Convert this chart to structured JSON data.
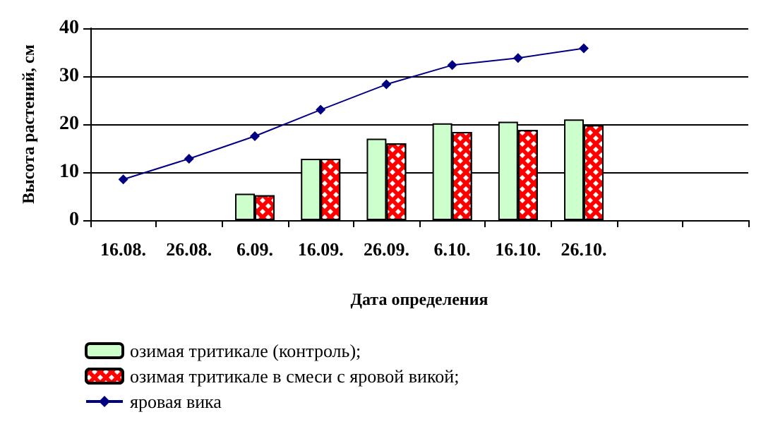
{
  "chart_data": {
    "type": "bar",
    "xlabel": "Дата определения",
    "ylabel": "Высота растений, см",
    "categories": [
      "16.08.",
      "26.08.",
      "6.09.",
      "16.09.",
      "26.09.",
      "6.10.",
      "16.10.",
      "26.10.",
      null,
      null
    ],
    "series": [
      {
        "name": "озимая тритикале (контроль);",
        "color": "#ccffcc",
        "values": [
          null,
          null,
          5.5,
          12.8,
          17,
          20.2,
          20.5,
          21,
          null,
          null
        ]
      },
      {
        "name": "озимая тритикале в смеси с яровой викой;",
        "color": "#ff0000",
        "values": [
          null,
          null,
          5.2,
          12.8,
          16,
          18.4,
          18.8,
          19.8,
          null,
          null
        ]
      },
      {
        "name": "яровая вика",
        "type": "line",
        "color": "#000080",
        "marker": "diamond",
        "values": [
          8.5,
          12.8,
          17.5,
          23,
          28.3,
          32.3,
          33.8,
          35.8,
          null,
          null
        ]
      }
    ],
    "ylim": [
      0,
      40
    ],
    "yticks": [
      0,
      10,
      20,
      30,
      40
    ],
    "grid": "y",
    "legend": "bottom"
  }
}
